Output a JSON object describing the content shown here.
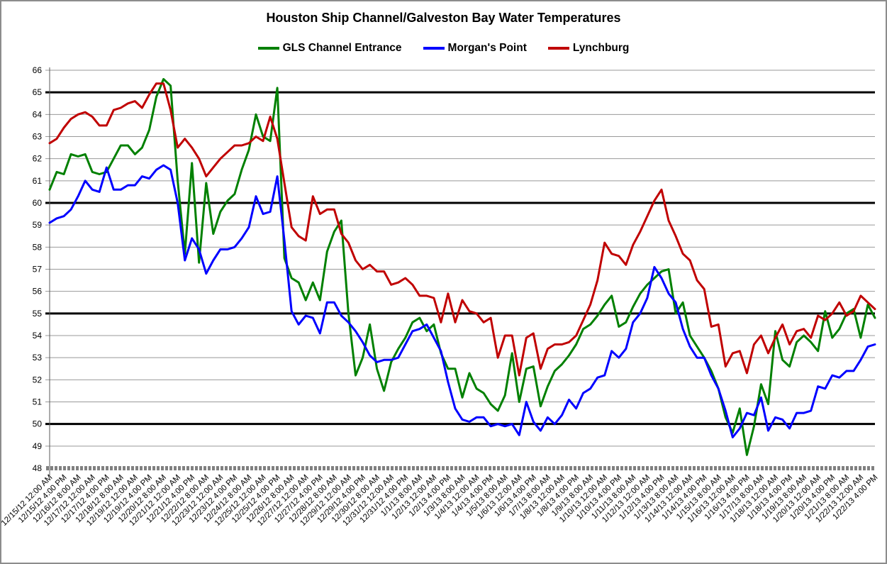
{
  "window": {
    "background_color": "#FFFFFF",
    "border_color": "#8C8C8C"
  },
  "chart_data": {
    "type": "line",
    "title": "Houston Ship Channel/Galveston Bay Water Temperatures",
    "legend_position": "top",
    "grid": true,
    "x_axis": {
      "label": "",
      "start": "12/15/12 12:00 AM",
      "end": "1/22/13 4:00 PM",
      "tick_interval_hours": 16,
      "data_interval_hours": 8,
      "tick_labels": [
        "12/15/12 12:00 AM",
        "12/15/12 4:00 PM",
        "12/16/12 8:00 AM",
        "12/17/12 12:00 AM",
        "12/17/12 4:00 PM",
        "12/18/12 8:00 AM",
        "12/19/12 12:00 AM",
        "12/19/12 4:00 PM",
        "12/20/12 8:00 AM",
        "12/21/12 12:00 AM",
        "12/21/12 4:00 PM",
        "12/22/12 8:00 AM",
        "12/23/12 12:00 AM",
        "12/23/12 4:00 PM",
        "12/24/12 8:00 AM",
        "12/25/12 12:00 AM",
        "12/25/12 4:00 PM",
        "12/26/12 8:00 AM",
        "12/27/12 12:00 AM",
        "12/27/12 4:00 PM",
        "12/28/12 8:00 AM",
        "12/29/12 12:00 AM",
        "12/29/12 4:00 PM",
        "12/30/12 8:00 AM",
        "12/31/12 12:00 AM",
        "12/31/12 4:00 PM",
        "1/1/13 8:00 AM",
        "1/2/13 12:00 AM",
        "1/2/13 4:00 PM",
        "1/3/13 8:00 AM",
        "1/4/13 12:00 AM",
        "1/4/13 4:00 PM",
        "1/5/13 8:00 AM",
        "1/6/13 12:00 AM",
        "1/6/13 4:00 PM",
        "1/7/13 8:00 AM",
        "1/8/13 12:00 AM",
        "1/8/13 4:00 PM",
        "1/9/13 8:00 AM",
        "1/10/13 12:00 AM",
        "1/10/13 4:00 PM",
        "1/11/13 8:00 AM",
        "1/12/13 12:00 AM",
        "1/12/13 4:00 PM",
        "1/13/13 8:00 AM",
        "1/14/13 12:00 AM",
        "1/14/13 4:00 PM",
        "1/15/13 8:00 AM",
        "1/16/13 12:00 AM",
        "1/16/13 4:00 PM",
        "1/17/13 8:00 AM",
        "1/18/13 12:00 AM",
        "1/18/13 4:00 PM",
        "1/19/13 8:00 AM",
        "1/20/13 12:00 AM",
        "1/20/13 4:00 PM",
        "1/21/13 8:00 AM",
        "1/22/13 12:00 AM",
        "1/22/13 4:00 PM"
      ]
    },
    "y_axis": {
      "min": 48,
      "max": 66,
      "tick_step": 1,
      "tick_labels": [
        "66",
        "65",
        "64",
        "63",
        "62",
        "61",
        "60",
        "59",
        "58",
        "57",
        "56",
        "55",
        "54",
        "53",
        "52",
        "51",
        "50",
        "49",
        "48"
      ],
      "major_line_values": [
        50,
        55,
        60,
        65
      ],
      "major_line_color": "#000000",
      "gridline_color": "#999999",
      "axis_tick_color": "#808080"
    },
    "series": [
      {
        "name": "GLS Channel Entrance",
        "color": "#008000",
        "values": [
          60.6,
          61.4,
          61.3,
          62.2,
          62.1,
          62.2,
          61.4,
          61.3,
          61.4,
          62.0,
          62.6,
          62.6,
          62.2,
          62.5,
          63.3,
          64.8,
          65.6,
          65.3,
          61.0,
          57.7,
          61.8,
          57.3,
          60.9,
          58.6,
          59.6,
          60.1,
          60.4,
          61.5,
          62.4,
          64.0,
          63.0,
          62.8,
          65.2,
          57.5,
          56.6,
          56.4,
          55.6,
          56.4,
          55.6,
          57.8,
          58.7,
          59.2,
          55.0,
          52.2,
          53.0,
          54.5,
          52.5,
          51.5,
          52.8,
          53.4,
          53.9,
          54.6,
          54.8,
          54.2,
          54.5,
          53.2,
          52.5,
          52.5,
          51.2,
          52.3,
          51.6,
          51.4,
          50.9,
          50.6,
          51.3,
          53.2,
          51.0,
          52.5,
          52.6,
          50.8,
          51.7,
          52.4,
          52.7,
          53.1,
          53.6,
          54.3,
          54.5,
          54.9,
          55.4,
          55.8,
          54.4,
          54.6,
          55.3,
          55.9,
          56.3,
          56.6,
          56.9,
          57.0,
          55.0,
          55.5,
          54.0,
          53.5,
          53.0,
          52.4,
          51.6,
          50.3,
          49.6,
          50.7,
          48.6,
          49.9,
          51.8,
          50.9,
          54.2,
          52.9,
          52.6,
          53.7,
          54.0,
          53.7,
          53.3,
          55.1,
          53.9,
          54.3,
          55.0,
          55.2,
          53.9,
          55.4,
          54.8
        ]
      },
      {
        "name": "Morgan's Point",
        "color": "#0000FF",
        "values": [
          59.1,
          59.3,
          59.4,
          59.7,
          60.3,
          61.0,
          60.6,
          60.5,
          61.6,
          60.6,
          60.6,
          60.8,
          60.8,
          61.2,
          61.1,
          61.5,
          61.7,
          61.5,
          60.0,
          57.4,
          58.4,
          57.9,
          56.8,
          57.4,
          57.9,
          57.9,
          58.0,
          58.4,
          58.9,
          60.3,
          59.5,
          59.6,
          61.2,
          58.3,
          55.1,
          54.5,
          54.9,
          54.8,
          54.1,
          55.5,
          55.5,
          54.9,
          54.6,
          54.2,
          53.7,
          53.1,
          52.8,
          52.9,
          52.9,
          53.0,
          53.6,
          54.2,
          54.3,
          54.5,
          53.9,
          53.3,
          51.9,
          50.7,
          50.2,
          50.1,
          50.3,
          50.3,
          49.9,
          50.0,
          49.9,
          50.0,
          49.5,
          51.0,
          50.1,
          49.7,
          50.3,
          50.0,
          50.4,
          51.1,
          50.7,
          51.4,
          51.6,
          52.1,
          52.2,
          53.3,
          53.0,
          53.4,
          54.6,
          55.0,
          55.7,
          57.1,
          56.6,
          55.9,
          55.5,
          54.3,
          53.5,
          53.0,
          53.0,
          52.2,
          51.6,
          50.6,
          49.4,
          49.8,
          50.5,
          50.4,
          51.2,
          49.7,
          50.3,
          50.2,
          49.8,
          50.5,
          50.5,
          50.6,
          51.7,
          51.6,
          52.2,
          52.1,
          52.4,
          52.4,
          52.9,
          53.5,
          53.6
        ]
      },
      {
        "name": "Lynchburg",
        "color": "#C00000",
        "values": [
          62.7,
          62.9,
          63.4,
          63.8,
          64.0,
          64.1,
          63.9,
          63.5,
          63.5,
          64.2,
          64.3,
          64.5,
          64.6,
          64.3,
          64.9,
          65.4,
          65.4,
          64.2,
          62.5,
          62.9,
          62.5,
          62.0,
          61.2,
          61.6,
          62.0,
          62.3,
          62.6,
          62.6,
          62.7,
          63.0,
          62.8,
          63.9,
          62.9,
          60.9,
          58.9,
          58.5,
          58.3,
          60.3,
          59.5,
          59.7,
          59.7,
          58.6,
          58.2,
          57.4,
          57.0,
          57.2,
          56.9,
          56.9,
          56.3,
          56.4,
          56.6,
          56.3,
          55.8,
          55.8,
          55.7,
          54.6,
          55.9,
          54.6,
          55.6,
          55.1,
          55.0,
          54.6,
          54.8,
          53.0,
          54.0,
          54.0,
          52.2,
          53.9,
          54.1,
          52.5,
          53.4,
          53.6,
          53.6,
          53.7,
          54.0,
          54.7,
          55.4,
          56.5,
          58.2,
          57.7,
          57.6,
          57.2,
          58.1,
          58.7,
          59.4,
          60.1,
          60.6,
          59.2,
          58.5,
          57.7,
          57.4,
          56.5,
          56.1,
          54.4,
          54.5,
          52.6,
          53.2,
          53.3,
          52.3,
          53.6,
          54.0,
          53.2,
          53.9,
          54.5,
          53.6,
          54.2,
          54.3,
          53.9,
          54.9,
          54.7,
          55.0,
          55.5,
          54.9,
          55.1,
          55.8,
          55.5,
          55.2
        ]
      }
    ]
  }
}
